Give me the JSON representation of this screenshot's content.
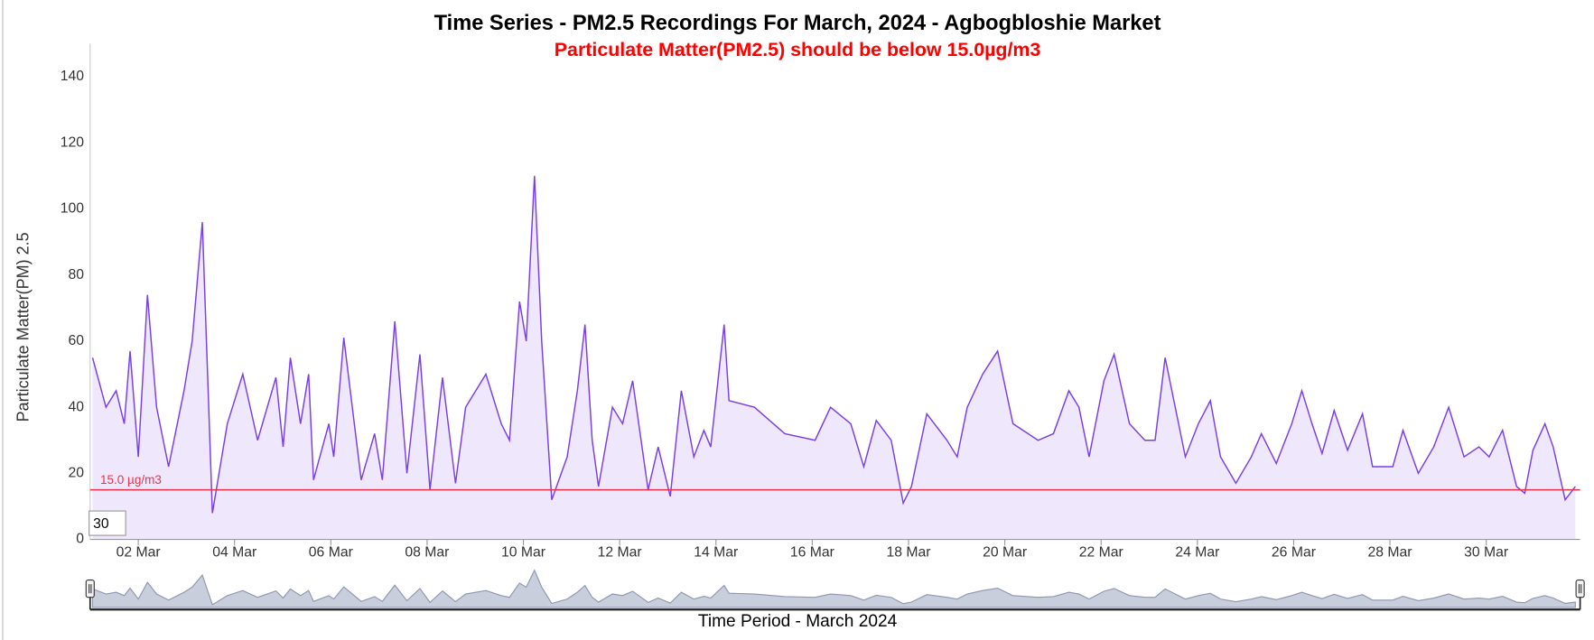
{
  "chart_data": {
    "type": "area",
    "title": "Time Series - PM2.5 Recordings For March, 2024 - Agbogbloshie Market",
    "subtitle": "Particulate Matter(PM2.5) should be below 15.0µg/m3",
    "y_axis_label": "Particulate Matter(PM) 2.5",
    "x_axis_label": "Time Period - March 2024",
    "zoom_box": "30",
    "threshold": 15,
    "threshold_label": "15.0 µg/m3",
    "threshold_color": "#e8334a",
    "x": [
      1.05,
      1.33,
      1.54,
      1.71,
      1.83,
      2.0,
      2.19,
      2.38,
      2.63,
      2.95,
      3.12,
      3.33,
      3.54,
      3.85,
      4.17,
      4.48,
      4.86,
      5.01,
      5.16,
      5.37,
      5.54,
      5.64,
      5.96,
      6.06,
      6.27,
      6.63,
      6.91,
      7.07,
      7.33,
      7.58,
      7.85,
      8.06,
      8.32,
      8.59,
      8.8,
      9.22,
      9.54,
      9.71,
      9.92,
      10.06,
      10.23,
      10.38,
      10.59,
      10.91,
      11.12,
      11.28,
      11.43,
      11.56,
      11.85,
      12.06,
      12.27,
      12.59,
      12.8,
      13.05,
      13.28,
      13.54,
      13.75,
      13.89,
      14.17,
      14.27,
      14.8,
      15.43,
      16.06,
      16.38,
      16.8,
      17.07,
      17.33,
      17.64,
      17.89,
      18.06,
      18.38,
      18.8,
      19.01,
      19.22,
      19.54,
      19.85,
      20.17,
      20.69,
      21.01,
      21.33,
      21.54,
      21.75,
      22.06,
      22.27,
      22.59,
      22.91,
      23.12,
      23.33,
      23.75,
      24.02,
      24.27,
      24.48,
      24.8,
      25.12,
      25.33,
      25.64,
      25.96,
      26.17,
      26.38,
      26.59,
      26.84,
      27.12,
      27.43,
      27.64,
      28.06,
      28.27,
      28.59,
      28.91,
      29.22,
      29.54,
      29.85,
      30.06,
      30.34,
      30.63,
      30.8,
      30.97,
      31.22,
      31.39,
      31.64,
      31.85
    ],
    "series": [
      {
        "name": "PM2.5",
        "color": "#7b3fe4",
        "fill": "#efe8fd",
        "values": [
          55,
          40,
          45,
          35,
          57,
          25,
          74,
          40,
          22,
          45,
          60,
          96,
          8,
          35,
          50,
          30,
          49,
          28,
          55,
          35,
          50,
          18,
          35,
          25,
          61,
          18,
          32,
          18,
          66,
          20,
          56,
          15,
          49,
          17,
          40,
          50,
          35,
          30,
          72,
          60,
          110,
          60,
          12,
          25,
          45,
          65,
          30,
          16,
          40,
          35,
          48,
          15,
          28,
          13,
          45,
          25,
          33,
          28,
          65,
          42,
          40,
          32,
          30,
          40,
          35,
          22,
          36,
          30,
          11,
          16,
          38,
          30,
          25,
          40,
          50,
          57,
          35,
          30,
          32,
          45,
          40,
          25,
          48,
          56,
          35,
          30,
          30,
          55,
          25,
          35,
          42,
          25,
          17,
          25,
          32,
          23,
          35,
          45,
          35,
          26,
          39,
          27,
          38,
          22,
          22,
          33,
          20,
          28,
          40,
          25,
          28,
          25,
          33,
          16,
          14,
          27,
          35,
          28,
          12,
          16
        ]
      }
    ],
    "xlim": [
      1,
      31.95
    ],
    "xticks": [
      {
        "value": 2,
        "label": "02 Mar"
      },
      {
        "value": 4,
        "label": "04 Mar"
      },
      {
        "value": 6,
        "label": "06 Mar"
      },
      {
        "value": 8,
        "label": "08 Mar"
      },
      {
        "value": 10,
        "label": "10 Mar"
      },
      {
        "value": 12,
        "label": "12 Mar"
      },
      {
        "value": 14,
        "label": "14 Mar"
      },
      {
        "value": 16,
        "label": "16 Mar"
      },
      {
        "value": 18,
        "label": "18 Mar"
      },
      {
        "value": 20,
        "label": "20 Mar"
      },
      {
        "value": 22,
        "label": "22 Mar"
      },
      {
        "value": 24,
        "label": "24 Mar"
      },
      {
        "value": 26,
        "label": "26 Mar"
      },
      {
        "value": 28,
        "label": "28 Mar"
      },
      {
        "value": 30,
        "label": "30 Mar"
      }
    ],
    "ylim": [
      0,
      150
    ],
    "yticks": [
      0,
      20,
      40,
      60,
      80,
      100,
      120,
      140
    ],
    "grid": false,
    "navigator_color": "#8e96b0"
  }
}
